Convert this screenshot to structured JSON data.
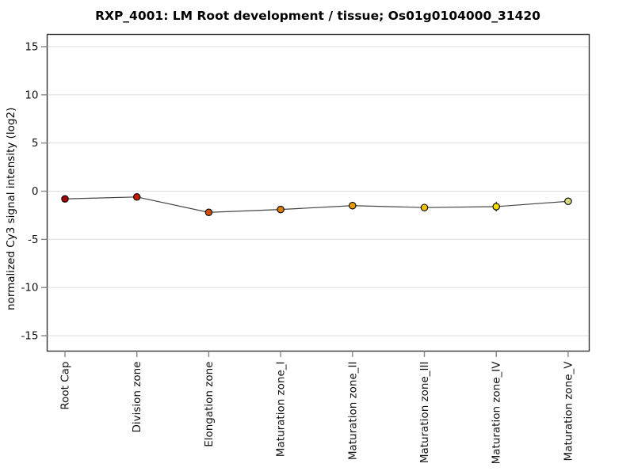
{
  "chart_data": {
    "type": "line",
    "title": "RXP_4001: LM Root development / tissue; Os01g0104000_31420",
    "ylabel": "normalized Cy3 signal intensity (log2)",
    "xlabel": "",
    "categories": [
      "Root Cap",
      "Division zone",
      "Elongation zone",
      "Maturation zone_I",
      "Maturation zone_II",
      "Maturation zone_III",
      "Maturation zone_IV",
      "Maturation zone_V"
    ],
    "values": [
      -0.8,
      -0.6,
      -2.2,
      -1.9,
      -1.5,
      -1.7,
      -1.6,
      -1.05
    ],
    "errors": [
      0,
      0.3,
      0.15,
      0.3,
      0.4,
      0.25,
      0.5,
      0.1
    ],
    "point_colors": [
      "#a00000",
      "#c41e00",
      "#d04f00",
      "#dd7a00",
      "#e89e00",
      "#eec000",
      "#f1d800",
      "#d9d97e"
    ],
    "yticks": [
      15,
      10,
      5,
      0,
      -5,
      -10,
      -15
    ],
    "ylim": [
      -16.5,
      16.5
    ],
    "grid": true,
    "legend": "none",
    "line_color": "#444444",
    "marker_outline": "#000000",
    "grid_color": "#e2e2e2",
    "tick_color": "#888888",
    "frame_color": "#333333"
  }
}
